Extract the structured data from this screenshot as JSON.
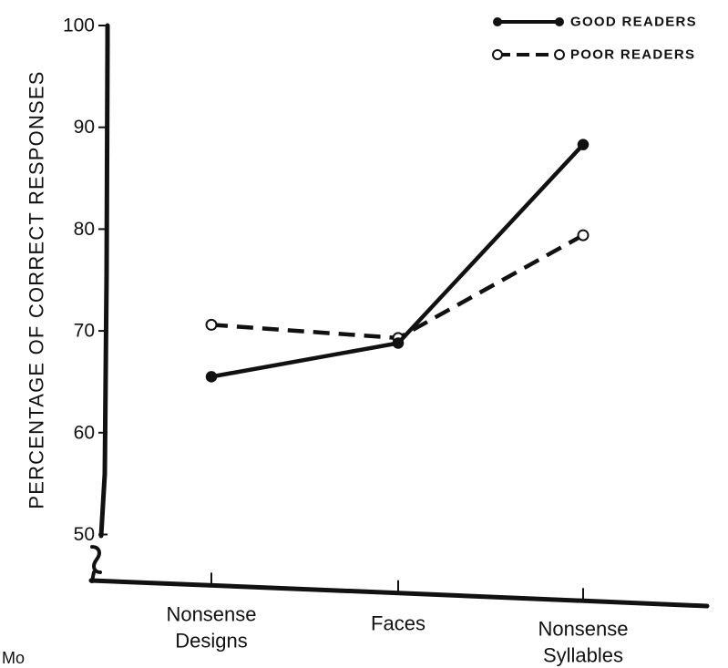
{
  "chart_data": {
    "type": "line",
    "title": "",
    "xlabel": "",
    "ylabel": "PERCENTAGE OF CORRECT RESPONSES",
    "categories": [
      [
        "Nonsense",
        "Designs"
      ],
      [
        "Faces"
      ],
      [
        "Nonsense",
        "Syllables"
      ]
    ],
    "yticks": [
      50,
      60,
      70,
      80,
      90,
      100
    ],
    "ylim": [
      47,
      100
    ],
    "y_axis_break": true,
    "grid": false,
    "legend_position": "top-right",
    "series": [
      {
        "name": "GOOD READERS",
        "values": [
          65.5,
          68.8,
          88.3
        ],
        "line_style": "solid",
        "marker": "filled-circle",
        "color": "#111111"
      },
      {
        "name": "POOR READERS",
        "values": [
          70.6,
          69.3,
          79.4
        ],
        "line_style": "dashed",
        "marker": "open-circle",
        "color": "#111111"
      }
    ]
  },
  "stray_text": "Mo"
}
